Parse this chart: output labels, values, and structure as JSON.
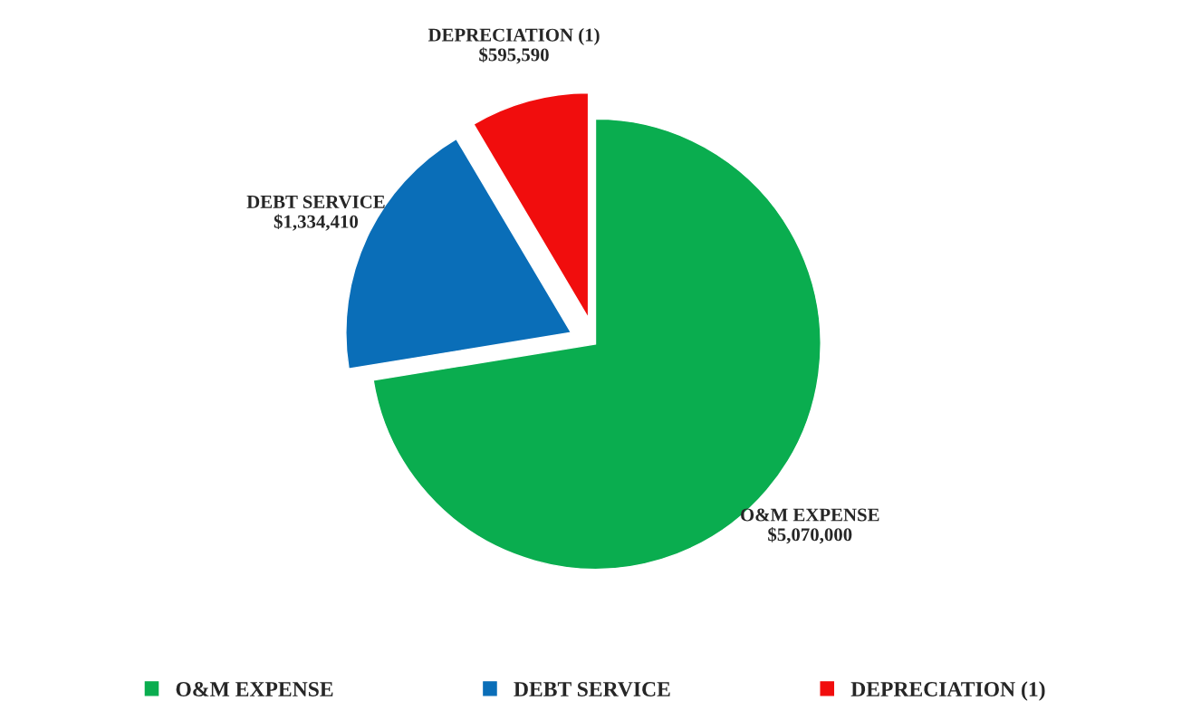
{
  "chart_data": {
    "type": "pie",
    "categories": [
      "O&M EXPENSE",
      "DEBT SERVICE",
      "DEPRECIATION (1)"
    ],
    "values": [
      5070000,
      1334410,
      595590
    ],
    "value_labels": [
      "$5,070,000",
      "$1,334,410",
      "$595,590"
    ],
    "colors": [
      "#0aad4f",
      "#0a6eb8",
      "#f10d0d"
    ],
    "legend": "bottom"
  }
}
